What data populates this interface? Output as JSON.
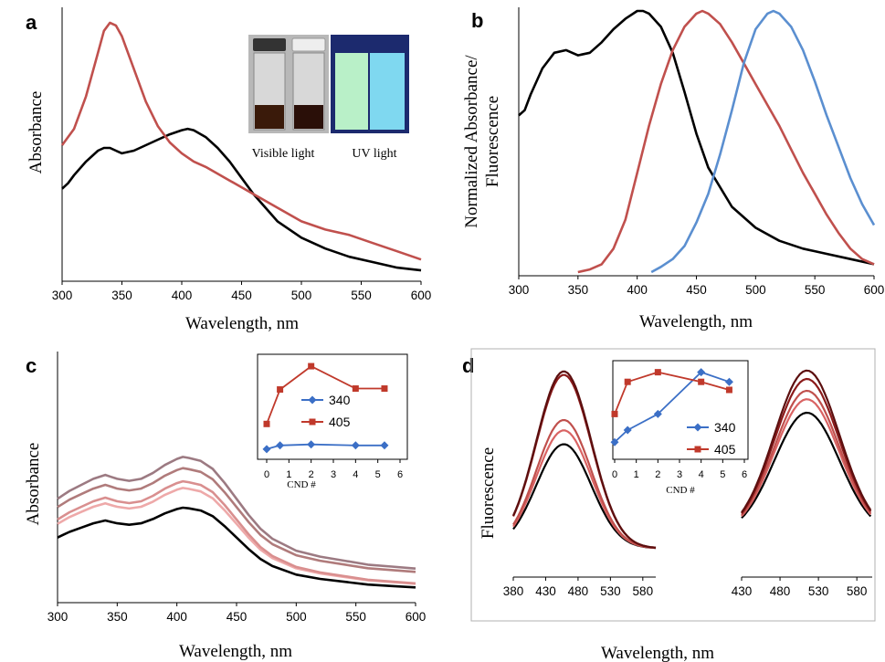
{
  "panels": {
    "a": {
      "label": "a",
      "ylabel": "Absorbance",
      "xlabel": "Wavelength,  nm",
      "photo": {
        "visible_label": "Visible light",
        "uv_label": "UV light"
      }
    },
    "b": {
      "label": "b",
      "ylabel_line1": "Normalized Absorbance/",
      "ylabel_line2": "Fluorescence",
      "xlabel": "Wavelength,  nm"
    },
    "c": {
      "label": "c",
      "ylabel": "Absorbance",
      "xlabel": "Wavelength,  nm",
      "inset_xlabel": "CND #"
    },
    "d": {
      "label": "d",
      "ylabel": "Fluorescence",
      "xlabel": "Wavelength,  nm",
      "inset_xlabel": "CND #"
    }
  },
  "colors": {
    "black": "#000000",
    "red": "#c0504d",
    "blue": "#5b8fd0",
    "inset_blue": "#3b6fc6",
    "inset_red": "#c0392b"
  },
  "chart_data": [
    {
      "panel": "a",
      "type": "line",
      "xlabel": "Wavelength,  nm",
      "ylabel": "Absorbance",
      "xlim": [
        300,
        600
      ],
      "xticks": [
        300,
        350,
        400,
        450,
        500,
        550,
        600
      ],
      "series": [
        {
          "color": "#000000",
          "x": [
            300,
            305,
            310,
            320,
            330,
            335,
            340,
            345,
            350,
            360,
            370,
            380,
            390,
            400,
            405,
            410,
            420,
            430,
            440,
            450,
            460,
            470,
            480,
            500,
            520,
            540,
            560,
            580,
            600
          ],
          "y": [
            0.34,
            0.36,
            0.39,
            0.44,
            0.48,
            0.49,
            0.49,
            0.48,
            0.47,
            0.48,
            0.5,
            0.52,
            0.54,
            0.555,
            0.56,
            0.555,
            0.53,
            0.49,
            0.44,
            0.38,
            0.32,
            0.27,
            0.22,
            0.16,
            0.12,
            0.09,
            0.07,
            0.05,
            0.04
          ]
        },
        {
          "color": "#c0504d",
          "x": [
            300,
            310,
            320,
            330,
            335,
            340,
            345,
            350,
            360,
            370,
            380,
            390,
            400,
            410,
            420,
            440,
            460,
            480,
            500,
            520,
            540,
            560,
            580,
            600
          ],
          "y": [
            0.5,
            0.56,
            0.68,
            0.84,
            0.92,
            0.95,
            0.94,
            0.9,
            0.78,
            0.66,
            0.57,
            0.51,
            0.47,
            0.44,
            0.42,
            0.37,
            0.32,
            0.27,
            0.22,
            0.19,
            0.17,
            0.14,
            0.11,
            0.08
          ]
        }
      ]
    },
    {
      "panel": "b",
      "type": "line",
      "xlabel": "Wavelength,  nm",
      "xlim": [
        300,
        600
      ],
      "xticks": [
        300,
        350,
        400,
        450,
        500,
        550,
        600
      ],
      "series": [
        {
          "color": "#000000",
          "x": [
            300,
            305,
            310,
            320,
            330,
            340,
            350,
            360,
            370,
            380,
            390,
            400,
            405,
            410,
            420,
            430,
            440,
            450,
            460,
            480,
            500,
            520,
            540,
            560,
            580,
            600
          ],
          "y": [
            0.6,
            0.62,
            0.68,
            0.78,
            0.84,
            0.85,
            0.83,
            0.84,
            0.88,
            0.93,
            0.97,
            1.0,
            1.0,
            0.99,
            0.94,
            0.84,
            0.69,
            0.53,
            0.4,
            0.25,
            0.17,
            0.12,
            0.09,
            0.07,
            0.05,
            0.03
          ]
        },
        {
          "color": "#c0504d",
          "x": [
            350,
            360,
            370,
            380,
            390,
            400,
            410,
            420,
            430,
            440,
            450,
            455,
            460,
            470,
            480,
            490,
            500,
            510,
            520,
            530,
            540,
            550,
            560,
            570,
            580,
            590,
            600
          ],
          "y": [
            0.0,
            0.01,
            0.03,
            0.09,
            0.2,
            0.38,
            0.56,
            0.72,
            0.85,
            0.94,
            0.99,
            1.0,
            0.99,
            0.95,
            0.88,
            0.8,
            0.72,
            0.64,
            0.56,
            0.47,
            0.38,
            0.3,
            0.22,
            0.15,
            0.09,
            0.05,
            0.03
          ]
        },
        {
          "color": "#5b8fd0",
          "x": [
            412,
            420,
            430,
            440,
            450,
            460,
            470,
            480,
            490,
            500,
            510,
            515,
            520,
            530,
            540,
            550,
            560,
            570,
            580,
            590,
            600
          ],
          "y": [
            0.0,
            0.02,
            0.05,
            0.1,
            0.19,
            0.3,
            0.45,
            0.62,
            0.8,
            0.93,
            0.99,
            1.0,
            0.99,
            0.94,
            0.85,
            0.73,
            0.6,
            0.48,
            0.36,
            0.26,
            0.18
          ]
        }
      ]
    },
    {
      "panel": "c",
      "type": "line",
      "xlabel": "Wavelength,  nm",
      "ylabel": "Absorbance",
      "xlim": [
        300,
        600
      ],
      "xticks": [
        300,
        350,
        400,
        450,
        500,
        550,
        600
      ],
      "series": [
        {
          "color": "#000000",
          "offset": 0.0,
          "scale": 1.0
        },
        {
          "color": "#eea9a9",
          "offset": 0.02,
          "scale": 1.2
        },
        {
          "color": "#d98f8f",
          "offset": 0.02,
          "scale": 1.28
        },
        {
          "color": "#b07b7b",
          "offset": 0.1,
          "scale": 1.3
        },
        {
          "color": "#9c7a82",
          "offset": 0.12,
          "scale": 1.4
        }
      ],
      "base_x": [
        300,
        305,
        310,
        320,
        330,
        340,
        345,
        350,
        360,
        370,
        380,
        390,
        400,
        405,
        410,
        420,
        430,
        440,
        450,
        460,
        470,
        480,
        500,
        520,
        540,
        560,
        580,
        600
      ],
      "base_y": [
        0.38,
        0.4,
        0.42,
        0.45,
        0.48,
        0.5,
        0.49,
        0.48,
        0.47,
        0.48,
        0.51,
        0.55,
        0.58,
        0.59,
        0.585,
        0.57,
        0.53,
        0.46,
        0.38,
        0.3,
        0.23,
        0.18,
        0.12,
        0.09,
        0.07,
        0.05,
        0.04,
        0.03
      ],
      "inset": {
        "xlabel": "CND #",
        "xlim": [
          0,
          6
        ],
        "xticks": [
          0,
          1,
          2,
          3,
          4,
          5,
          6
        ],
        "series": [
          {
            "name": "340",
            "color": "#3b6fc6",
            "marker": "diamond",
            "x": [
              0,
              0.6,
              2,
              4,
              5.3
            ],
            "y": [
              0.08,
              0.12,
              0.13,
              0.12,
              0.12
            ]
          },
          {
            "name": "405",
            "color": "#c0392b",
            "marker": "square",
            "x": [
              0,
              0.6,
              2,
              4,
              5.3
            ],
            "y": [
              0.35,
              0.72,
              0.97,
              0.73,
              0.73
            ]
          }
        ]
      }
    },
    {
      "panel": "d",
      "type": "line",
      "xlabel": "Wavelength,  nm",
      "ylabel": "Fluorescence",
      "left_xlim": [
        380,
        600
      ],
      "left_xticks": [
        380,
        430,
        480,
        530,
        580
      ],
      "right_xlim": [
        430,
        600
      ],
      "right_xticks": [
        430,
        480,
        530,
        580
      ],
      "peaks_left": [
        {
          "color": "#000000",
          "amp": 0.6
        },
        {
          "color": "#d96363",
          "amp": 0.68
        },
        {
          "color": "#c0504d",
          "amp": 0.74
        },
        {
          "color": "#8b1a1a",
          "amp": 1.0
        },
        {
          "color": "#5c0f0f",
          "amp": 1.02
        }
      ],
      "peaks_right": [
        {
          "color": "#000000",
          "amp": 0.72
        },
        {
          "color": "#d96363",
          "amp": 0.8
        },
        {
          "color": "#c0504d",
          "amp": 0.85
        },
        {
          "color": "#8b1a1a",
          "amp": 0.92
        },
        {
          "color": "#5c0f0f",
          "amp": 0.97
        }
      ],
      "inset": {
        "xlabel": "CND #",
        "xlim": [
          0,
          6
        ],
        "xticks": [
          0,
          1,
          2,
          3,
          4,
          5,
          6
        ],
        "series": [
          {
            "name": "340",
            "color": "#3b6fc6",
            "marker": "diamond",
            "x": [
              0,
              0.6,
              2,
              4,
              5.3
            ],
            "y": [
              0.1,
              0.25,
              0.45,
              0.97,
              0.85
            ]
          },
          {
            "name": "405",
            "color": "#c0392b",
            "marker": "square",
            "x": [
              0,
              0.6,
              2,
              4,
              5.3
            ],
            "y": [
              0.45,
              0.85,
              0.97,
              0.85,
              0.75
            ]
          }
        ]
      }
    }
  ]
}
